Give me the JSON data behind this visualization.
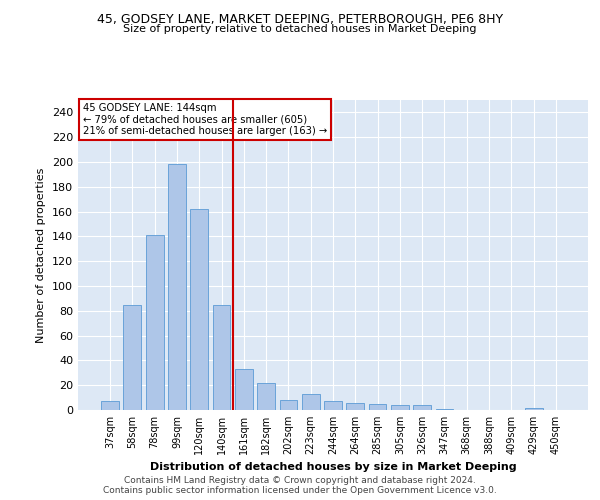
{
  "title1": "45, GODSEY LANE, MARKET DEEPING, PETERBOROUGH, PE6 8HY",
  "title2": "Size of property relative to detached houses in Market Deeping",
  "xlabel": "Distribution of detached houses by size in Market Deeping",
  "ylabel": "Number of detached properties",
  "categories": [
    "37sqm",
    "58sqm",
    "78sqm",
    "99sqm",
    "120sqm",
    "140sqm",
    "161sqm",
    "182sqm",
    "202sqm",
    "223sqm",
    "244sqm",
    "264sqm",
    "285sqm",
    "305sqm",
    "326sqm",
    "347sqm",
    "368sqm",
    "388sqm",
    "409sqm",
    "429sqm",
    "450sqm"
  ],
  "values": [
    7,
    85,
    141,
    198,
    162,
    85,
    33,
    22,
    8,
    13,
    7,
    6,
    5,
    4,
    4,
    1,
    0,
    0,
    0,
    2,
    0
  ],
  "bar_color": "#aec6e8",
  "bar_edgecolor": "#5b9bd5",
  "bar_width": 0.8,
  "vline_x": 5.5,
  "vline_color": "#cc0000",
  "annotation_box_text": "45 GODSEY LANE: 144sqm\n← 79% of detached houses are smaller (605)\n21% of semi-detached houses are larger (163) →",
  "annotation_box_color": "#cc0000",
  "ylim": [
    0,
    250
  ],
  "yticks": [
    0,
    20,
    40,
    60,
    80,
    100,
    120,
    140,
    160,
    180,
    200,
    220,
    240
  ],
  "bg_color": "#dde8f5",
  "footnote1": "Contains HM Land Registry data © Crown copyright and database right 2024.",
  "footnote2": "Contains public sector information licensed under the Open Government Licence v3.0."
}
